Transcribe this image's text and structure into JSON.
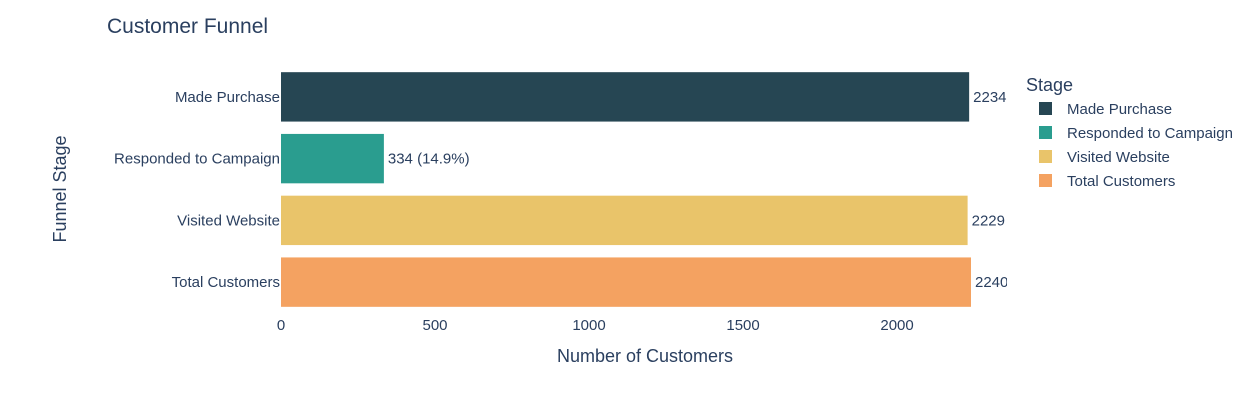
{
  "chart_data": {
    "type": "bar",
    "orientation": "horizontal",
    "title": "Customer Funnel",
    "xlabel": "Number of Customers",
    "ylabel": "Funnel Stage",
    "xlim": [
      0,
      2240
    ],
    "xticks": [
      0,
      500,
      1000,
      1500,
      2000
    ],
    "grid": false,
    "categories": [
      "Made Purchase",
      "Responded to Campaign",
      "Visited Website",
      "Total Customers"
    ],
    "values": [
      2234,
      334,
      2229,
      2240
    ],
    "data_labels": [
      "2234",
      "334 (14.9%)",
      "2229",
      "2240"
    ],
    "colors": [
      "#264653",
      "#2a9d8f",
      "#e9c46a",
      "#f4a261"
    ],
    "legend": {
      "title": "Stage",
      "placement": "right",
      "items": [
        "Made Purchase",
        "Responded to Campaign",
        "Visited Website",
        "Total Customers"
      ]
    }
  }
}
